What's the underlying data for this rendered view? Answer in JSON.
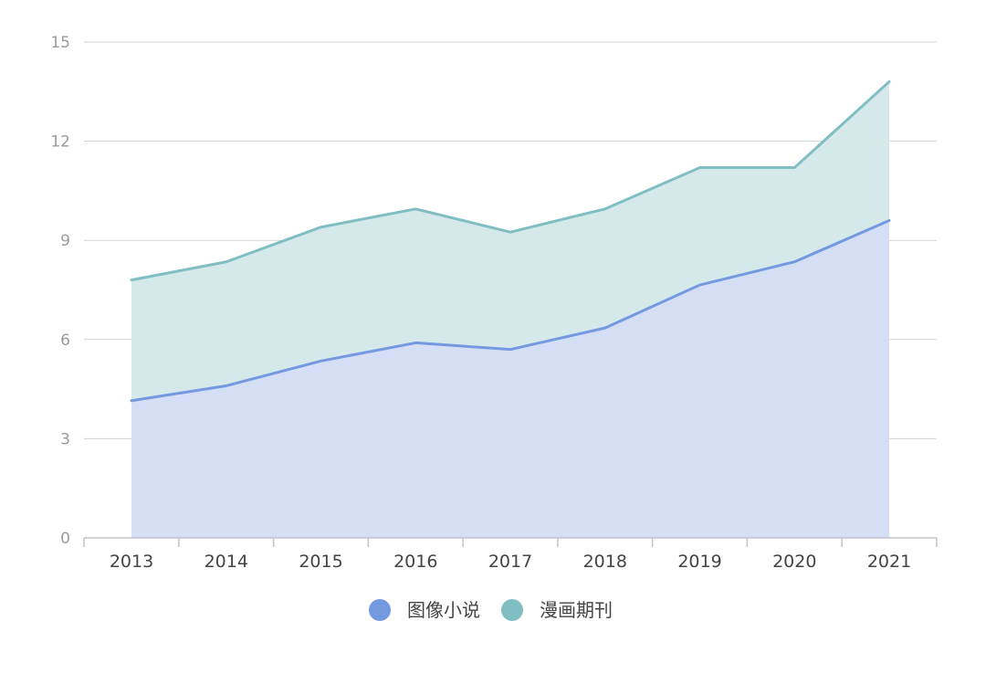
{
  "chart_data": {
    "type": "area",
    "stacked": true,
    "categories": [
      "2013",
      "2014",
      "2015",
      "2016",
      "2017",
      "2018",
      "2019",
      "2020",
      "2021"
    ],
    "ylim": [
      0,
      15
    ],
    "yticks": [
      0,
      3,
      6,
      9,
      12,
      15
    ],
    "grid": true,
    "legend_position": "bottom-center",
    "series": [
      {
        "name": "图像小说",
        "color": "#7499e1",
        "fill": "#d4dff6",
        "values": [
          4.15,
          4.6,
          5.35,
          5.9,
          5.7,
          6.35,
          7.65,
          8.35,
          9.6
        ]
      },
      {
        "name": "漫画期刊",
        "color": "#80bec3",
        "fill": "#d6e9ea",
        "values": [
          3.65,
          3.75,
          4.05,
          4.05,
          3.55,
          3.6,
          3.55,
          2.85,
          4.2
        ]
      }
    ]
  }
}
